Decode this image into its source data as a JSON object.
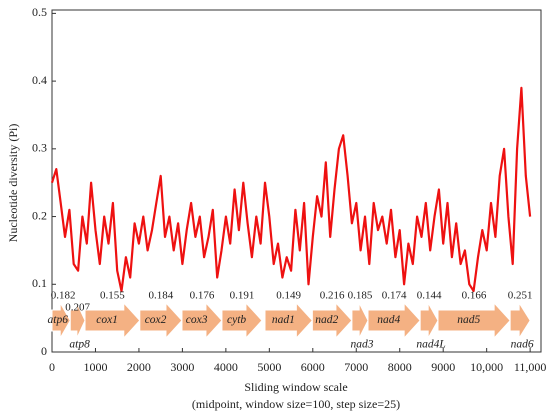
{
  "chart_data": {
    "type": "line",
    "ylabel": "Nucleotide diversity (Pi)",
    "xlabel": "Sliding window scale",
    "xlabel_note": "(midpoint, window size=100, step size=25)",
    "xlim": [
      0,
      11250
    ],
    "ylim": [
      0,
      0.505
    ],
    "yticks": [
      0,
      0.1,
      0.2,
      0.3,
      0.4,
      0.5
    ],
    "xticks": [
      0,
      1000,
      2000,
      3000,
      4000,
      5000,
      6000,
      7000,
      8000,
      9000,
      {
        "value": 10000,
        "label": "10,000"
      },
      {
        "value": 11000,
        "label": "11,000"
      }
    ],
    "x": [
      0,
      100,
      200,
      300,
      400,
      500,
      600,
      700,
      800,
      900,
      1000,
      1100,
      1200,
      1300,
      1400,
      1500,
      1600,
      1700,
      1800,
      1900,
      2000,
      2100,
      2200,
      2300,
      2400,
      2500,
      2600,
      2700,
      2800,
      2900,
      3000,
      3100,
      3200,
      3300,
      3400,
      3500,
      3600,
      3700,
      3800,
      3900,
      4000,
      4100,
      4200,
      4300,
      4400,
      4500,
      4600,
      4700,
      4800,
      4900,
      5000,
      5100,
      5200,
      5300,
      5400,
      5500,
      5600,
      5700,
      5800,
      5900,
      6000,
      6100,
      6200,
      6300,
      6400,
      6500,
      6600,
      6700,
      6800,
      6900,
      7000,
      7100,
      7200,
      7300,
      7400,
      7500,
      7600,
      7700,
      7800,
      7900,
      8000,
      8100,
      8200,
      8300,
      8400,
      8500,
      8600,
      8700,
      8800,
      8900,
      9000,
      9100,
      9200,
      9300,
      9400,
      9500,
      9600,
      9700,
      9800,
      9900,
      10000,
      10100,
      10200,
      10300,
      10400,
      10500,
      10600,
      10700,
      10800,
      10900,
      11000
    ],
    "series": [
      {
        "color": "#ee1111",
        "values": [
          0.25,
          0.27,
          0.22,
          0.17,
          0.21,
          0.13,
          0.12,
          0.2,
          0.16,
          0.25,
          0.18,
          0.13,
          0.2,
          0.16,
          0.22,
          0.12,
          0.09,
          0.14,
          0.11,
          0.19,
          0.16,
          0.2,
          0.15,
          0.18,
          0.22,
          0.26,
          0.17,
          0.2,
          0.15,
          0.19,
          0.13,
          0.18,
          0.22,
          0.17,
          0.2,
          0.14,
          0.17,
          0.21,
          0.11,
          0.15,
          0.2,
          0.16,
          0.24,
          0.18,
          0.25,
          0.19,
          0.14,
          0.2,
          0.16,
          0.25,
          0.2,
          0.13,
          0.16,
          0.11,
          0.14,
          0.12,
          0.21,
          0.15,
          0.22,
          0.1,
          0.17,
          0.23,
          0.2,
          0.28,
          0.17,
          0.24,
          0.3,
          0.32,
          0.26,
          0.19,
          0.22,
          0.15,
          0.2,
          0.13,
          0.22,
          0.18,
          0.2,
          0.16,
          0.21,
          0.14,
          0.18,
          0.1,
          0.16,
          0.13,
          0.2,
          0.17,
          0.22,
          0.15,
          0.2,
          0.24,
          0.16,
          0.22,
          0.14,
          0.19,
          0.13,
          0.15,
          0.1,
          0.09,
          0.14,
          0.18,
          0.15,
          0.22,
          0.17,
          0.26,
          0.3,
          0.2,
          0.13,
          0.3,
          0.39,
          0.26,
          0.2
        ]
      }
    ],
    "genes": [
      {
        "name": "atp6",
        "pi": 0.182,
        "start": 0,
        "end": 420,
        "below": false
      },
      {
        "name": "atp8",
        "pi": 0.207,
        "start": 420,
        "end": 760,
        "below": true
      },
      {
        "name": "cox1",
        "pi": 0.155,
        "start": 760,
        "end": 2020,
        "below": false
      },
      {
        "name": "cox2",
        "pi": 0.184,
        "start": 2020,
        "end": 2990,
        "below": false
      },
      {
        "name": "cox3",
        "pi": 0.176,
        "start": 2990,
        "end": 3910,
        "below": false
      },
      {
        "name": "cytb",
        "pi": 0.191,
        "start": 3910,
        "end": 4830,
        "below": false
      },
      {
        "name": "nad1",
        "pi": 0.149,
        "start": 4900,
        "end": 5990,
        "below": false
      },
      {
        "name": "nad2",
        "pi": 0.216,
        "start": 5990,
        "end": 6900,
        "below": false
      },
      {
        "name": "nad3",
        "pi": 0.185,
        "start": 6900,
        "end": 7270,
        "below": true
      },
      {
        "name": "nad4",
        "pi": 0.174,
        "start": 7270,
        "end": 8470,
        "below": false
      },
      {
        "name": "nad4L",
        "pi": 0.144,
        "start": 8470,
        "end": 8880,
        "below": true
      },
      {
        "name": "nad5",
        "pi": 0.166,
        "start": 8880,
        "end": 10540,
        "below": false
      },
      {
        "name": "nad6",
        "pi": 0.251,
        "start": 10540,
        "end": 11000,
        "below": true
      }
    ]
  }
}
